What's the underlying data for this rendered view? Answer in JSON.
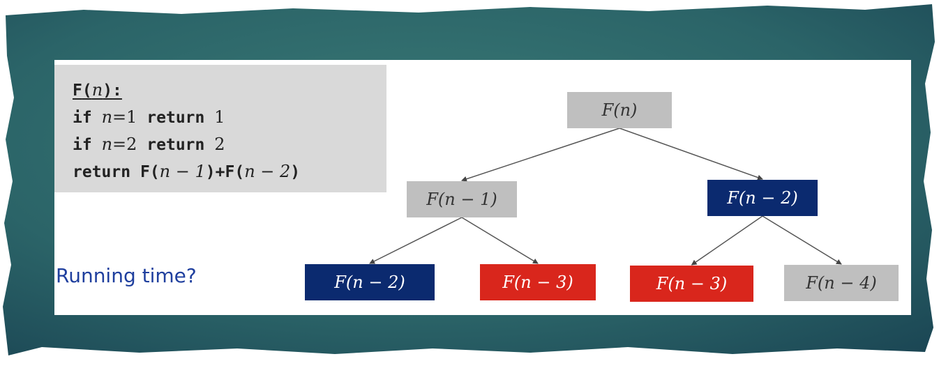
{
  "code": {
    "header": {
      "func": "F",
      "var": "n",
      "colon": ":"
    },
    "lines": [
      {
        "kw1": "if",
        "var": "n",
        "op": "=",
        "num": "1",
        "kw2": "return",
        "ret": "1"
      },
      {
        "kw1": "if",
        "var": "n",
        "op": "=",
        "num": "2",
        "kw2": "return",
        "ret": "2"
      }
    ],
    "final": {
      "kw": "return",
      "expr1_func": "F",
      "expr1": "n − 1",
      "plus": "+",
      "expr2_func": "F",
      "expr2": "n − 2"
    }
  },
  "question": "Running time?",
  "tree": {
    "nodes": [
      {
        "id": "root",
        "label": "F(n)",
        "fill": "#bfbfbf",
        "text_color": "#333333"
      },
      {
        "id": "n1",
        "label": "F(n − 1)",
        "fill": "#bfbfbf",
        "text_color": "#333333"
      },
      {
        "id": "n2",
        "label": "F(n − 2)",
        "fill": "#0b2a6f",
        "text_color": "#ffffff"
      },
      {
        "id": "n1a",
        "label": "F(n − 2)",
        "fill": "#0b2a6f",
        "text_color": "#ffffff"
      },
      {
        "id": "n1b",
        "label": "F(n − 3)",
        "fill": "#d9261c",
        "text_color": "#ffffff"
      },
      {
        "id": "n2a",
        "label": "F(n − 3)",
        "fill": "#d9261c",
        "text_color": "#ffffff"
      },
      {
        "id": "n2b",
        "label": "F(n − 4)",
        "fill": "#bfbfbf",
        "text_color": "#333333"
      }
    ],
    "edges": [
      [
        "root",
        "n1"
      ],
      [
        "root",
        "n2"
      ],
      [
        "n1",
        "n1a"
      ],
      [
        "n1",
        "n1b"
      ],
      [
        "n2",
        "n2a"
      ],
      [
        "n2",
        "n2b"
      ]
    ]
  },
  "colors": {
    "backdrop": "#2e6b6e",
    "slide": "#ffffff",
    "code_bg": "#d9d9d9",
    "question": "#1f3f9e",
    "edge": "#555555"
  }
}
